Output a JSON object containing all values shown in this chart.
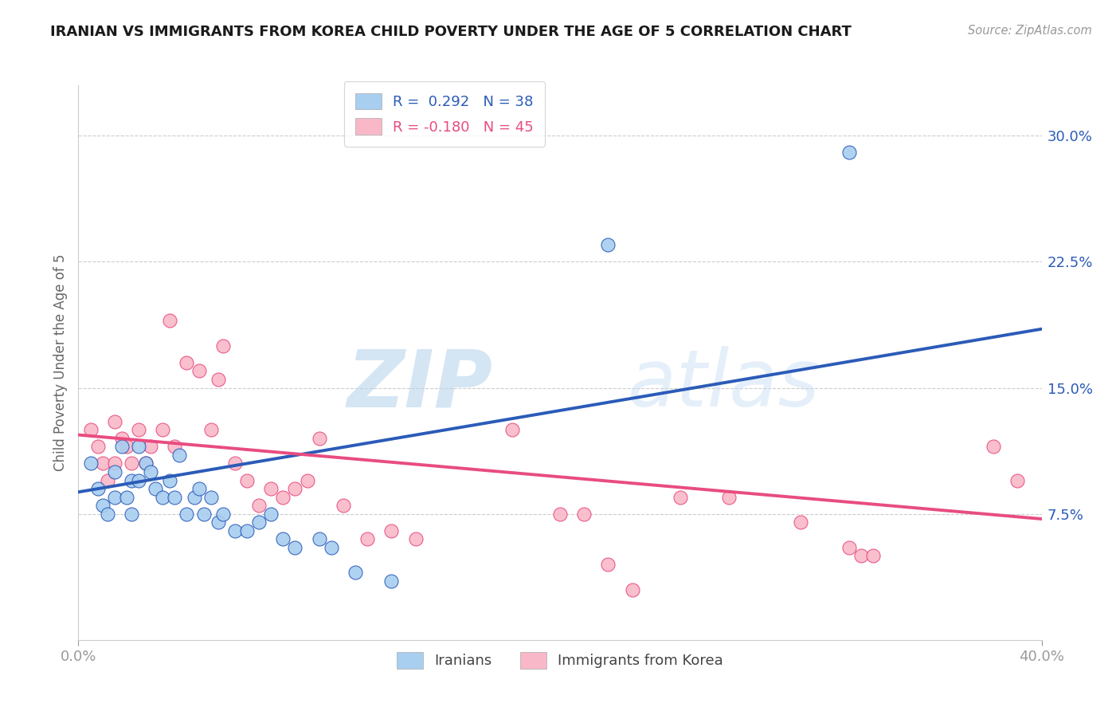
{
  "title": "IRANIAN VS IMMIGRANTS FROM KOREA CHILD POVERTY UNDER THE AGE OF 5 CORRELATION CHART",
  "source": "Source: ZipAtlas.com",
  "ylabel": "Child Poverty Under the Age of 5",
  "xlim": [
    0.0,
    0.4
  ],
  "ylim": [
    0.0,
    0.33
  ],
  "yticks": [
    0.075,
    0.15,
    0.225,
    0.3
  ],
  "ytick_labels": [
    "7.5%",
    "15.0%",
    "22.5%",
    "30.0%"
  ],
  "xtick_labels": [
    "0.0%",
    "40.0%"
  ],
  "watermark_zip": "ZIP",
  "watermark_atlas": "atlas",
  "legend_blue_R": "R =  0.292",
  "legend_blue_N": "N = 38",
  "legend_pink_R": "R = -0.180",
  "legend_pink_N": "N = 45",
  "blue_color": "#A8CEF0",
  "pink_color": "#F9B8C8",
  "blue_line_color": "#2B5BB8",
  "pink_line_color": "#E84C80",
  "blue_trend_x": [
    0.0,
    0.4
  ],
  "blue_trend_y": [
    0.088,
    0.185
  ],
  "pink_trend_x": [
    0.0,
    0.4
  ],
  "pink_trend_y": [
    0.122,
    0.072
  ],
  "iranians_x": [
    0.005,
    0.008,
    0.01,
    0.012,
    0.015,
    0.015,
    0.018,
    0.02,
    0.022,
    0.022,
    0.025,
    0.025,
    0.028,
    0.03,
    0.032,
    0.035,
    0.038,
    0.04,
    0.042,
    0.045,
    0.048,
    0.05,
    0.052,
    0.055,
    0.058,
    0.06,
    0.065,
    0.07,
    0.075,
    0.08,
    0.085,
    0.09,
    0.1,
    0.105,
    0.115,
    0.13,
    0.22,
    0.32
  ],
  "iranians_y": [
    0.105,
    0.09,
    0.08,
    0.075,
    0.1,
    0.085,
    0.115,
    0.085,
    0.095,
    0.075,
    0.115,
    0.095,
    0.105,
    0.1,
    0.09,
    0.085,
    0.095,
    0.085,
    0.11,
    0.075,
    0.085,
    0.09,
    0.075,
    0.085,
    0.07,
    0.075,
    0.065,
    0.065,
    0.07,
    0.075,
    0.06,
    0.055,
    0.06,
    0.055,
    0.04,
    0.035,
    0.235,
    0.29
  ],
  "korea_x": [
    0.005,
    0.008,
    0.01,
    0.012,
    0.015,
    0.015,
    0.018,
    0.02,
    0.022,
    0.025,
    0.028,
    0.03,
    0.035,
    0.038,
    0.04,
    0.045,
    0.05,
    0.055,
    0.058,
    0.06,
    0.065,
    0.07,
    0.075,
    0.08,
    0.085,
    0.09,
    0.095,
    0.1,
    0.11,
    0.12,
    0.13,
    0.14,
    0.18,
    0.2,
    0.21,
    0.22,
    0.23,
    0.25,
    0.27,
    0.3,
    0.32,
    0.325,
    0.33,
    0.38,
    0.39
  ],
  "korea_y": [
    0.125,
    0.115,
    0.105,
    0.095,
    0.13,
    0.105,
    0.12,
    0.115,
    0.105,
    0.125,
    0.105,
    0.115,
    0.125,
    0.19,
    0.115,
    0.165,
    0.16,
    0.125,
    0.155,
    0.175,
    0.105,
    0.095,
    0.08,
    0.09,
    0.085,
    0.09,
    0.095,
    0.12,
    0.08,
    0.06,
    0.065,
    0.06,
    0.125,
    0.075,
    0.075,
    0.045,
    0.03,
    0.085,
    0.085,
    0.07,
    0.055,
    0.05,
    0.05,
    0.115,
    0.095
  ]
}
